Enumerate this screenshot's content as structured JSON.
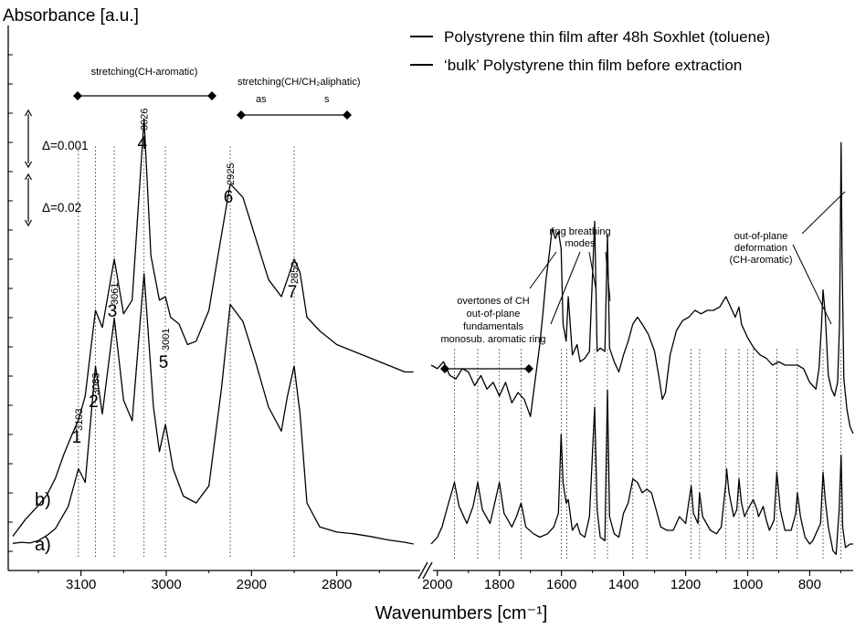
{
  "chart_data": {
    "type": "line",
    "title": "",
    "ylabel": "Absorbance [a.u.]",
    "xlabel": "Wavenumbers [cm⁻¹]",
    "x_reversed": true,
    "axis_break": true,
    "xlim_left_panel": [
      3180,
      2700
    ],
    "xlim_right_panel": [
      2020,
      660
    ],
    "grid": false,
    "legend_position": "top-right",
    "ticks_left": [
      3100,
      3000,
      2900,
      2800
    ],
    "ticks_right": [
      2000,
      1800,
      1600,
      1400,
      1200,
      1000,
      800
    ],
    "legend": [
      "Polystyrene thin film after 48h Soxhlet (toluene)",
      "‘bulk’ Polystyrene thin film before extraction"
    ],
    "curve_labels": [
      "a)",
      "b)"
    ],
    "scale_bars": [
      "Δ=0.001",
      "Δ=0.02"
    ],
    "peaks": [
      {
        "n": "1",
        "wn": "3103",
        "x": 3103
      },
      {
        "n": "2",
        "wn": "3083",
        "x": 3083
      },
      {
        "n": "3",
        "wn": "3061",
        "x": 3061
      },
      {
        "n": "4",
        "wn": "3026",
        "x": 3026
      },
      {
        "n": "5",
        "wn": "3001",
        "x": 3001
      },
      {
        "n": "6",
        "wn": "2925",
        "x": 2925
      },
      {
        "n": "7",
        "wn": "2850",
        "x": 2850
      }
    ],
    "annotations": {
      "stretch_aromatic": "stretching(CH-aromatic)",
      "stretch_aliphatic": "stretching(CH/CH₂aliphatic)",
      "as": "as",
      "s": "s",
      "overtones": [
        "overtones of CH",
        "out-of-plane",
        "fundamentals",
        "monosub. aromatic ring"
      ],
      "ring": [
        "ring breathing",
        "modes"
      ],
      "oop": [
        "out-of-plane",
        "deformation",
        "(CH-aromatic)"
      ]
    },
    "series": [
      {
        "name": "a)",
        "left": [
          [
            3180,
            0.02
          ],
          [
            3170,
            0.05
          ],
          [
            3160,
            0.03
          ],
          [
            3150,
            0.1
          ],
          [
            3140,
            0.25
          ],
          [
            3130,
            0.45
          ],
          [
            3115,
            1.1
          ],
          [
            3103,
            2.2
          ],
          [
            3095,
            1.8
          ],
          [
            3083,
            5.2
          ],
          [
            3075,
            3.8
          ],
          [
            3061,
            6.6
          ],
          [
            3050,
            4.2
          ],
          [
            3040,
            3.6
          ],
          [
            3026,
            7.9
          ],
          [
            3015,
            4.0
          ],
          [
            3008,
            2.7
          ],
          [
            3001,
            3.5
          ],
          [
            2992,
            2.2
          ],
          [
            2980,
            1.4
          ],
          [
            2965,
            1.2
          ],
          [
            2950,
            1.7
          ],
          [
            2935,
            4.6
          ],
          [
            2925,
            7.0
          ],
          [
            2910,
            6.5
          ],
          [
            2895,
            5.3
          ],
          [
            2880,
            4.0
          ],
          [
            2865,
            3.3
          ],
          [
            2858,
            4.3
          ],
          [
            2850,
            5.2
          ],
          [
            2843,
            3.8
          ],
          [
            2835,
            1.2
          ],
          [
            2820,
            0.5
          ],
          [
            2800,
            0.35
          ],
          [
            2780,
            0.3
          ],
          [
            2760,
            0.22
          ],
          [
            2740,
            0.12
          ],
          [
            2720,
            0.05
          ],
          [
            2710,
            0.0
          ]
        ],
        "right": [
          [
            2020,
            0.0
          ],
          [
            2000,
            0.2
          ],
          [
            1985,
            0.5
          ],
          [
            1970,
            1.0
          ],
          [
            1945,
            1.8
          ],
          [
            1930,
            1.1
          ],
          [
            1905,
            0.6
          ],
          [
            1885,
            1.1
          ],
          [
            1870,
            1.8
          ],
          [
            1855,
            1.0
          ],
          [
            1830,
            0.6
          ],
          [
            1815,
            1.2
          ],
          [
            1800,
            1.8
          ],
          [
            1785,
            0.9
          ],
          [
            1760,
            0.5
          ],
          [
            1745,
            0.8
          ],
          [
            1730,
            1.2
          ],
          [
            1715,
            0.5
          ],
          [
            1690,
            0.3
          ],
          [
            1670,
            0.2
          ],
          [
            1645,
            0.3
          ],
          [
            1625,
            0.5
          ],
          [
            1610,
            0.9
          ],
          [
            1601,
            3.2
          ],
          [
            1595,
            1.8
          ],
          [
            1585,
            1.2
          ],
          [
            1578,
            1.3
          ],
          [
            1565,
            0.4
          ],
          [
            1550,
            0.6
          ],
          [
            1540,
            0.3
          ],
          [
            1525,
            0.2
          ],
          [
            1510,
            0.8
          ],
          [
            1493,
            4.0
          ],
          [
            1485,
            1.0
          ],
          [
            1475,
            0.2
          ],
          [
            1460,
            0.1
          ],
          [
            1452,
            4.5
          ],
          [
            1445,
            0.8
          ],
          [
            1430,
            0.3
          ],
          [
            1415,
            0.2
          ],
          [
            1400,
            0.9
          ],
          [
            1385,
            1.2
          ],
          [
            1370,
            1.9
          ],
          [
            1355,
            1.8
          ],
          [
            1340,
            1.5
          ],
          [
            1325,
            1.6
          ],
          [
            1310,
            1.5
          ],
          [
            1295,
            1.0
          ],
          [
            1280,
            0.5
          ],
          [
            1260,
            0.4
          ],
          [
            1240,
            0.4
          ],
          [
            1220,
            0.8
          ],
          [
            1200,
            0.6
          ],
          [
            1182,
            1.7
          ],
          [
            1175,
            0.9
          ],
          [
            1160,
            0.6
          ],
          [
            1155,
            1.5
          ],
          [
            1145,
            0.8
          ],
          [
            1120,
            0.4
          ],
          [
            1100,
            0.3
          ],
          [
            1085,
            0.5
          ],
          [
            1070,
            1.8
          ],
          [
            1068,
            2.2
          ],
          [
            1060,
            1.5
          ],
          [
            1045,
            0.8
          ],
          [
            1035,
            1.0
          ],
          [
            1028,
            1.9
          ],
          [
            1020,
            1.2
          ],
          [
            1010,
            0.8
          ],
          [
            1000,
            1.0
          ],
          [
            982,
            1.3
          ],
          [
            970,
            1.0
          ],
          [
            965,
            0.8
          ],
          [
            950,
            1.1
          ],
          [
            940,
            0.7
          ],
          [
            930,
            0.4
          ],
          [
            915,
            0.7
          ],
          [
            906,
            2.1
          ],
          [
            895,
            1.0
          ],
          [
            880,
            0.4
          ],
          [
            860,
            0.4
          ],
          [
            845,
            0.9
          ],
          [
            840,
            1.5
          ],
          [
            830,
            0.8
          ],
          [
            815,
            0.2
          ],
          [
            800,
            0.0
          ],
          [
            790,
            0.1
          ],
          [
            780,
            0.3
          ],
          [
            765,
            0.6
          ],
          [
            757,
            2.1
          ],
          [
            750,
            1.3
          ],
          [
            740,
            0.5
          ],
          [
            725,
            -0.2
          ],
          [
            715,
            -0.3
          ],
          [
            705,
            1.0
          ],
          [
            699,
            2.6
          ],
          [
            694,
            0.5
          ],
          [
            685,
            -0.1
          ],
          [
            670,
            0.0
          ],
          [
            660,
            0.0
          ]
        ]
      },
      {
        "name": "b)",
        "left": [
          [
            3180,
            -0.2
          ],
          [
            3165,
            0.3
          ],
          [
            3150,
            0.7
          ],
          [
            3140,
            1.0
          ],
          [
            3130,
            1.5
          ],
          [
            3120,
            2.2
          ],
          [
            3110,
            2.8
          ],
          [
            3103,
            3.2
          ],
          [
            3095,
            3.9
          ],
          [
            3083,
            6.4
          ],
          [
            3075,
            5.9
          ],
          [
            3061,
            7.9
          ],
          [
            3050,
            6.3
          ],
          [
            3040,
            6.7
          ],
          [
            3026,
            12.0
          ],
          [
            3018,
            8.0
          ],
          [
            3008,
            6.7
          ],
          [
            3001,
            6.8
          ],
          [
            2995,
            6.2
          ],
          [
            2985,
            6.0
          ],
          [
            2975,
            5.4
          ],
          [
            2965,
            5.5
          ],
          [
            2950,
            6.4
          ],
          [
            2940,
            7.9
          ],
          [
            2925,
            10.1
          ],
          [
            2910,
            9.7
          ],
          [
            2895,
            8.5
          ],
          [
            2880,
            7.3
          ],
          [
            2865,
            6.8
          ],
          [
            2858,
            7.3
          ],
          [
            2850,
            7.9
          ],
          [
            2843,
            7.5
          ],
          [
            2835,
            6.2
          ],
          [
            2820,
            5.8
          ],
          [
            2800,
            5.4
          ],
          [
            2780,
            5.2
          ],
          [
            2760,
            5.0
          ],
          [
            2740,
            4.8
          ],
          [
            2720,
            4.6
          ],
          [
            2710,
            4.6
          ]
        ],
        "right": [
          [
            2020,
            4.8
          ],
          [
            2000,
            4.7
          ],
          [
            1980,
            4.9
          ],
          [
            1960,
            4.5
          ],
          [
            1940,
            4.4
          ],
          [
            1920,
            4.7
          ],
          [
            1900,
            4.6
          ],
          [
            1880,
            4.2
          ],
          [
            1860,
            4.5
          ],
          [
            1840,
            4.1
          ],
          [
            1820,
            4.3
          ],
          [
            1800,
            3.9
          ],
          [
            1780,
            4.3
          ],
          [
            1760,
            3.7
          ],
          [
            1740,
            4.0
          ],
          [
            1720,
            3.8
          ],
          [
            1700,
            3.3
          ],
          [
            1690,
            4.0
          ],
          [
            1680,
            4.7
          ],
          [
            1670,
            5.4
          ],
          [
            1660,
            6.3
          ],
          [
            1650,
            7.3
          ],
          [
            1640,
            8.0
          ],
          [
            1630,
            8.8
          ],
          [
            1620,
            8.5
          ],
          [
            1610,
            8.7
          ],
          [
            1601,
            8.2
          ],
          [
            1595,
            6.0
          ],
          [
            1585,
            5.5
          ],
          [
            1578,
            6.8
          ],
          [
            1565,
            5.1
          ],
          [
            1550,
            5.4
          ],
          [
            1540,
            4.9
          ],
          [
            1525,
            5.0
          ],
          [
            1510,
            5.2
          ],
          [
            1493,
            9.0
          ],
          [
            1485,
            5.2
          ],
          [
            1475,
            5.3
          ],
          [
            1460,
            5.2
          ],
          [
            1452,
            8.6
          ],
          [
            1445,
            5.3
          ],
          [
            1430,
            4.9
          ],
          [
            1415,
            4.6
          ],
          [
            1400,
            5.1
          ],
          [
            1385,
            5.5
          ],
          [
            1370,
            6.0
          ],
          [
            1355,
            6.2
          ],
          [
            1340,
            6.0
          ],
          [
            1320,
            5.7
          ],
          [
            1300,
            5.2
          ],
          [
            1285,
            4.4
          ],
          [
            1275,
            3.8
          ],
          [
            1265,
            4.0
          ],
          [
            1250,
            5.1
          ],
          [
            1230,
            5.8
          ],
          [
            1210,
            6.1
          ],
          [
            1190,
            6.2
          ],
          [
            1170,
            6.4
          ],
          [
            1150,
            6.3
          ],
          [
            1130,
            6.4
          ],
          [
            1110,
            6.4
          ],
          [
            1090,
            6.5
          ],
          [
            1070,
            6.8
          ],
          [
            1060,
            6.6
          ],
          [
            1050,
            6.4
          ],
          [
            1040,
            6.2
          ],
          [
            1028,
            6.5
          ],
          [
            1020,
            6.0
          ],
          [
            1000,
            5.6
          ],
          [
            980,
            5.3
          ],
          [
            960,
            5.1
          ],
          [
            940,
            5.0
          ],
          [
            920,
            4.8
          ],
          [
            900,
            4.9
          ],
          [
            880,
            4.8
          ],
          [
            860,
            4.8
          ],
          [
            840,
            4.8
          ],
          [
            820,
            4.7
          ],
          [
            800,
            4.3
          ],
          [
            790,
            4.2
          ],
          [
            780,
            4.1
          ],
          [
            770,
            4.7
          ],
          [
            762,
            6.0
          ],
          [
            757,
            7.0
          ],
          [
            750,
            6.3
          ],
          [
            740,
            4.5
          ],
          [
            730,
            4.1
          ],
          [
            720,
            3.9
          ],
          [
            710,
            4.3
          ],
          [
            704,
            6.0
          ],
          [
            699,
            11.3
          ],
          [
            696,
            8.0
          ],
          [
            690,
            4.4
          ],
          [
            680,
            3.5
          ],
          [
            670,
            3.0
          ],
          [
            660,
            2.8
          ]
        ]
      }
    ]
  }
}
